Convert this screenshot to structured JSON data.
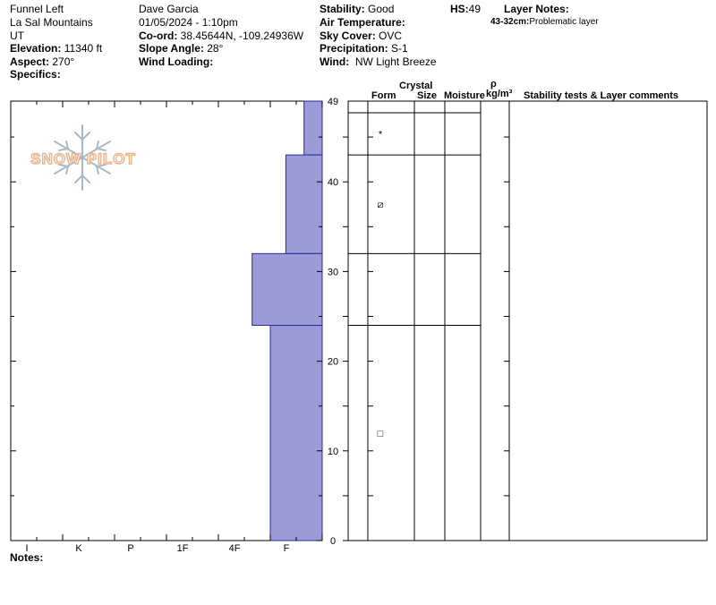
{
  "header": {
    "col1": {
      "location": "Funnel Left",
      "range": "La Sal Mountains",
      "state": "UT",
      "elevation_label": "Elevation:",
      "elevation_value": "11340 ft",
      "aspect_label": "Aspect:",
      "aspect_value": "270°",
      "specifics_label": "Specifics:"
    },
    "col2": {
      "observer": "Dave Garcia",
      "datetime": "01/05/2024 - 1:10pm",
      "coord_label": "Co-ord:",
      "coord_value": "38.45644N, -109.24936W",
      "slope_label": "Slope Angle:",
      "slope_value": "28°",
      "wind_loading_label": "Wind Loading:"
    },
    "col3": {
      "stability_label": "Stability:",
      "stability_value": "Good",
      "air_temp_label": "Air Temperature:",
      "sky_label": "Sky Cover:",
      "sky_value": "OVC",
      "precip_label": "Precipitation:",
      "precip_value": "S-1",
      "wind_label": "Wind:",
      "wind_value": "NW Light Breeze"
    },
    "hs_label": "HS:",
    "hs_value": "49",
    "layer_notes_label": "Layer Notes:",
    "layer_note_range": "43-32cm:",
    "layer_note_text": "Problematic layer"
  },
  "logo_text": "SNOW PILOT",
  "notes_label": "Notes:",
  "table_headers": {
    "crystal": "Crystal",
    "form": "Form",
    "size": "Size",
    "moisture": "Moisture",
    "rho": "ρ",
    "density_unit": "kg/m³",
    "comments": "Stability tests & Layer comments"
  },
  "chart_data": {
    "type": "bar",
    "hardness_scale": [
      "I",
      "K",
      "P",
      "1F",
      "4F",
      "F"
    ],
    "y_ticks": [
      0,
      10,
      20,
      30,
      40,
      49
    ],
    "ylim": [
      0,
      49
    ],
    "hs": 49,
    "layers": [
      {
        "bottom": 43,
        "top": 49,
        "hardness": 0.35,
        "form": "*"
      },
      {
        "bottom": 32,
        "top": 43,
        "hardness": 0.7,
        "form": "⧄"
      },
      {
        "bottom": 24,
        "top": 32,
        "hardness": 1.35,
        "form": ""
      },
      {
        "bottom": 0,
        "top": 24,
        "hardness": 1.0,
        "form": "□"
      }
    ],
    "layer_fill": "#9b9bd8",
    "layer_stroke": "#2a2aa0"
  }
}
